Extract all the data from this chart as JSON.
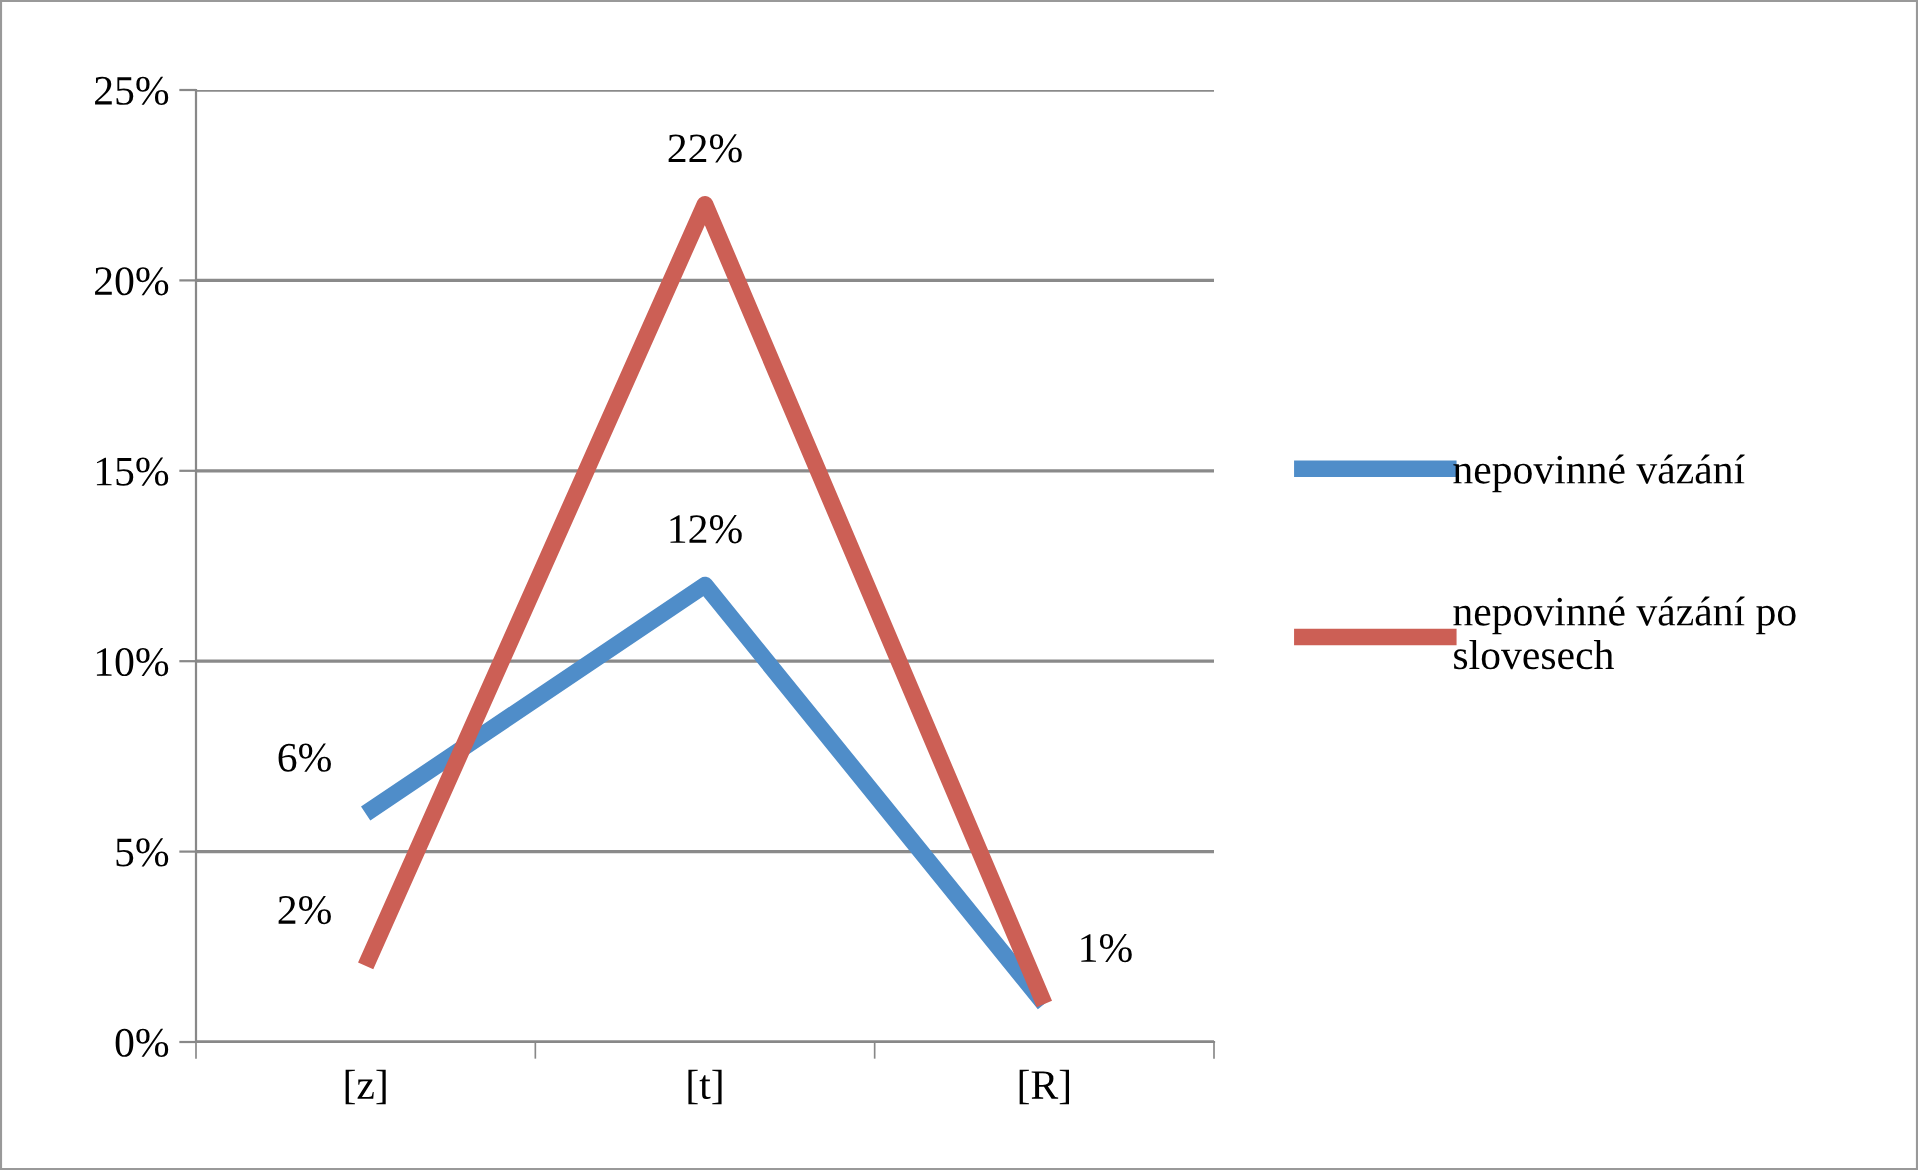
{
  "chart_data": {
    "type": "line",
    "categories": [
      "[z]",
      "[t]",
      "[R]"
    ],
    "series": [
      {
        "name": "nepovinné vázání",
        "color": "#4f8dc9",
        "values": [
          6,
          12,
          1
        ],
        "value_labels": [
          "6%",
          "12%",
          "1%"
        ]
      },
      {
        "name": "nepovinné vázání po slovesech",
        "color": "#cc5f55",
        "values": [
          2,
          22,
          1
        ],
        "value_labels": [
          "2%",
          "22%",
          null
        ]
      }
    ],
    "ylim": [
      0,
      25
    ],
    "yticks": [
      {
        "value": 0,
        "label": "0%"
      },
      {
        "value": 5,
        "label": "5%"
      },
      {
        "value": 10,
        "label": "10%"
      },
      {
        "value": 15,
        "label": "15%"
      },
      {
        "value": 20,
        "label": "20%"
      },
      {
        "value": 25,
        "label": "25%"
      }
    ],
    "grid": "y",
    "legend": "right",
    "marker": "none",
    "line_style": "solid"
  }
}
